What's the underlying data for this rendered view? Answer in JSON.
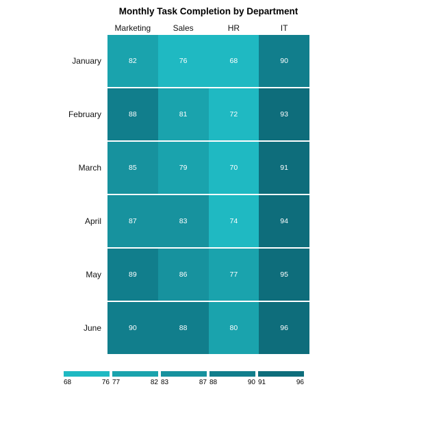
{
  "title": "Monthly Task Completion by Department",
  "chart_data": {
    "type": "heatmap",
    "title": "Monthly Task Completion by Department",
    "columns": [
      "Marketing",
      "Sales",
      "HR",
      "IT"
    ],
    "rows": [
      "January",
      "February",
      "March",
      "April",
      "May",
      "June"
    ],
    "values": [
      [
        82,
        76,
        68,
        90
      ],
      [
        88,
        81,
        72,
        93
      ],
      [
        85,
        79,
        70,
        91
      ],
      [
        87,
        83,
        74,
        94
      ],
      [
        89,
        86,
        77,
        95
      ],
      [
        90,
        88,
        80,
        96
      ]
    ],
    "value_range": [
      68,
      96
    ],
    "cell_text_color": "#ffffff",
    "legend": {
      "position": "bottom",
      "bins": [
        {
          "min": 68,
          "max": 76,
          "color": "#1fb9c2"
        },
        {
          "min": 77,
          "max": 82,
          "color": "#1aa3ad"
        },
        {
          "min": 83,
          "max": 87,
          "color": "#17929e"
        },
        {
          "min": 88,
          "max": 90,
          "color": "#117e8c"
        },
        {
          "min": 91,
          "max": 96,
          "color": "#0e6d7b"
        }
      ]
    }
  }
}
